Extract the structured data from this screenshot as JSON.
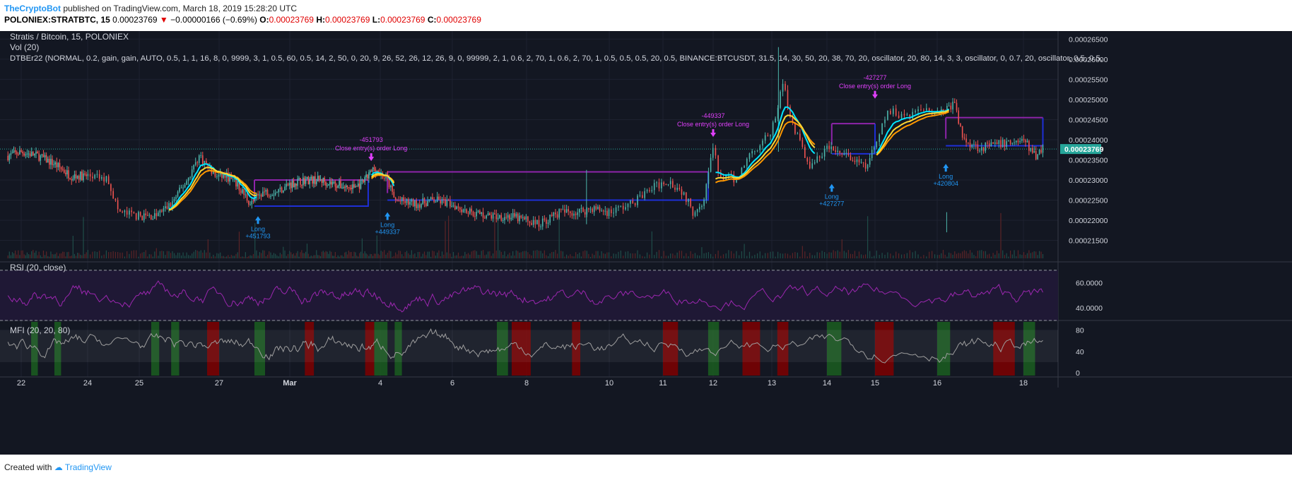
{
  "header": {
    "author": "TheCryptoBot",
    "published": "published on TradingView.com, March 18, 2019 15:28:20 UTC",
    "symbol": "POLONIEX:STRATBTC, 15",
    "last": "0.00023769",
    "arrow": "▼",
    "change": "−0.00000166 (−0.69%)",
    "o_label": "O:",
    "o": "0.00023769",
    "h_label": "H:",
    "h": "0.00023769",
    "l_label": "L:",
    "l": "0.00023769",
    "c_label": "C:",
    "c": "0.00023769"
  },
  "footer": {
    "created": "Created with",
    "brand": "TradingView"
  },
  "colors": {
    "background": "#131722",
    "rsi_band": "#1f1835",
    "rsi_line": "#9c27b0",
    "mfi_line": "#9e9e9e",
    "mfi_green": "#1b5e20",
    "mfi_red": "#7f0000",
    "position_blue": "#1e2fd6",
    "position_purple": "#8e24aa",
    "signal_label": "#e040fb",
    "long_label": "#2196f3",
    "price_tag": "#26a69a",
    "ma_yellow": "#fdd835",
    "ma_orange": "#ff9800",
    "ma_cyan": "#00e5ff"
  },
  "chart_data": {
    "type": "candlestick",
    "title": "Stratis / Bitcoin, 15, POLONIEX",
    "volume_label": "Vol (20)",
    "strategy_label": "DTBEr22 (NORMAL, 0.2,  gain,  gain, AUTO, 0.5, 1, 1, 16, 8, 0, 9999, 3, 1, 0.5, 60, 0.5, 14, 2, 50, 0, 20, 9, 26, 52, 26, 12, 26, 9, 0, 99999, 2, 1, 0.6, 2, 70, 1, 0.6, 2, 70, 1, 0.5, 0.5, 0.5, 20, 0.5, BINANCE:BTCUSDT, 31.5, 14, 30, 50, 20, 38, 70, 20, oscillator, 20, 80, 14, 3, 3, oscillator, 0, 0.7, 20, oscillator, 0.5, 0.5,",
    "x_axis": {
      "range_days": [
        21.6,
        40.5
      ],
      "ticks": [
        {
          "day": 22,
          "label": "22"
        },
        {
          "day": 24,
          "label": "24"
        },
        {
          "day": 25,
          "label": "25"
        },
        {
          "day": 27,
          "label": "27"
        },
        {
          "day": 29,
          "label": "Mar"
        },
        {
          "day": 32,
          "label": "4"
        },
        {
          "day": 34,
          "label": "6"
        },
        {
          "day": 36,
          "label": "8"
        },
        {
          "day": 38,
          "label": "10"
        },
        {
          "day": 39,
          "label": "11"
        },
        {
          "day": 40,
          "label": "12"
        },
        {
          "day": 41,
          "label": "13"
        },
        {
          "day": 42,
          "label": "14"
        },
        {
          "day": 43,
          "label": "15"
        },
        {
          "day": 44,
          "label": "16"
        },
        {
          "day": 46,
          "label": "18"
        }
      ]
    },
    "price_axis": {
      "ylim": [
        0.00021,
        0.000267
      ],
      "ticks": [
        "0.00021500",
        "0.00022000",
        "0.00022500",
        "0.00023000",
        "0.00023500",
        "0.00024000",
        "0.00024500",
        "0.00025000",
        "0.00025500",
        "0.00026000",
        "0.00026500"
      ],
      "last_price": "0.00023769"
    },
    "price_path": [
      {
        "day": 21.6,
        "p": 0.000236
      },
      {
        "day": 22.0,
        "p": 0.000237
      },
      {
        "day": 22.5,
        "p": 0.000236
      },
      {
        "day": 23.0,
        "p": 0.000234
      },
      {
        "day": 23.5,
        "p": 0.000231
      },
      {
        "day": 24.0,
        "p": 0.000231
      },
      {
        "day": 24.4,
        "p": 0.00023
      },
      {
        "day": 24.6,
        "p": 0.000222
      },
      {
        "day": 25.0,
        "p": 0.000221
      },
      {
        "day": 25.4,
        "p": 0.000221
      },
      {
        "day": 25.8,
        "p": 0.000224
      },
      {
        "day": 26.2,
        "p": 0.00023
      },
      {
        "day": 26.5,
        "p": 0.000236
      },
      {
        "day": 26.9,
        "p": 0.000231
      },
      {
        "day": 27.2,
        "p": 0.000231
      },
      {
        "day": 27.5,
        "p": 0.000229
      },
      {
        "day": 27.9,
        "p": 0.000224
      },
      {
        "day": 28.2,
        "p": 0.000227
      },
      {
        "day": 28.6,
        "p": 0.000227
      },
      {
        "day": 29.0,
        "p": 0.000229
      },
      {
        "day": 29.5,
        "p": 0.00023
      },
      {
        "day": 30.0,
        "p": 0.00023
      },
      {
        "day": 30.5,
        "p": 0.000229
      },
      {
        "day": 31.0,
        "p": 0.000228
      },
      {
        "day": 31.4,
        "p": 0.000229
      },
      {
        "day": 31.8,
        "p": 0.000233
      },
      {
        "day": 32.2,
        "p": 0.00023
      },
      {
        "day": 32.4,
        "p": 0.000225
      },
      {
        "day": 33.0,
        "p": 0.000224
      },
      {
        "day": 33.5,
        "p": 0.000225
      },
      {
        "day": 34.0,
        "p": 0.000224
      },
      {
        "day": 34.5,
        "p": 0.000222
      },
      {
        "day": 35.0,
        "p": 0.000221
      },
      {
        "day": 35.5,
        "p": 0.000221
      },
      {
        "day": 36.0,
        "p": 0.00022
      },
      {
        "day": 36.3,
        "p": 0.000219
      },
      {
        "day": 36.8,
        "p": 0.000222
      },
      {
        "day": 37.2,
        "p": 0.000222
      },
      {
        "day": 37.6,
        "p": 0.000223
      },
      {
        "day": 38.0,
        "p": 0.000222
      },
      {
        "day": 38.4,
        "p": 0.000224
      },
      {
        "day": 38.8,
        "p": 0.000228
      },
      {
        "day": 39.1,
        "p": 0.00023
      },
      {
        "day": 39.4,
        "p": 0.000227
      },
      {
        "day": 39.6,
        "p": 0.000222
      },
      {
        "day": 39.8,
        "p": 0.000225
      },
      {
        "day": 40.0,
        "p": 0.000238
      },
      {
        "day": 40.1,
        "p": 0.000231
      },
      {
        "day": 40.4,
        "p": 0.00023
      },
      {
        "day": 40.6,
        "p": 0.000236
      },
      {
        "day": 41.0,
        "p": 0.000242
      },
      {
        "day": 41.2,
        "p": 0.000254
      },
      {
        "day": 41.4,
        "p": 0.000243
      },
      {
        "day": 41.7,
        "p": 0.000233
      },
      {
        "day": 42.0,
        "p": 0.000238
      },
      {
        "day": 42.4,
        "p": 0.000236
      },
      {
        "day": 42.8,
        "p": 0.000233
      },
      {
        "day": 43.0,
        "p": 0.000238
      },
      {
        "day": 43.2,
        "p": 0.000247
      },
      {
        "day": 43.5,
        "p": 0.000246
      },
      {
        "day": 43.8,
        "p": 0.000248
      },
      {
        "day": 44.1,
        "p": 0.000247
      },
      {
        "day": 44.4,
        "p": 0.000249
      },
      {
        "day": 44.6,
        "p": 0.00024
      },
      {
        "day": 45.0,
        "p": 0.000238
      },
      {
        "day": 45.5,
        "p": 0.000239
      },
      {
        "day": 46.0,
        "p": 0.00024
      },
      {
        "day": 46.3,
        "p": 0.000236
      },
      {
        "day": 46.5,
        "p": 0.000238
      }
    ],
    "positions": {
      "long_levels": [
        {
          "from": 28.0,
          "to": 31.6,
          "p": 0.0002235
        },
        {
          "from": 32.2,
          "to": 39.9,
          "p": 0.000225
        },
        {
          "from": 42.1,
          "to": 43.0,
          "p": 0.0002365
        },
        {
          "from": 44.2,
          "to": 46.5,
          "p": 0.0002385
        }
      ],
      "close_levels": [
        {
          "from": 28.0,
          "to": 31.6,
          "p": 0.00023
        },
        {
          "from": 32.2,
          "to": 39.9,
          "p": 0.000232
        },
        {
          "from": 42.1,
          "to": 43.0,
          "p": 0.000244
        },
        {
          "from": 44.2,
          "to": 46.5,
          "p": 0.0002455
        }
      ]
    },
    "annotations": [
      {
        "type": "long",
        "day": 28.1,
        "p": 0.000221,
        "text": "Long",
        "value": "+451793"
      },
      {
        "type": "long",
        "day": 32.2,
        "p": 0.000222,
        "text": "Long",
        "value": "+449337"
      },
      {
        "type": "long",
        "day": 42.1,
        "p": 0.000229,
        "text": "Long",
        "value": "+427277"
      },
      {
        "type": "long",
        "day": 44.2,
        "p": 0.000234,
        "text": "Long",
        "value": "+420804"
      },
      {
        "type": "close",
        "day": 31.7,
        "p": 0.000234,
        "text": "Close entry(s) order Long",
        "value": "-451793"
      },
      {
        "type": "close",
        "day": 40.0,
        "p": 0.00024,
        "text": "Close entry(s) order Long",
        "value": "-449337"
      },
      {
        "type": "close",
        "day": 43.0,
        "p": 0.0002495,
        "text": "Close entry(s) order Long",
        "value": "-427277"
      }
    ],
    "rsi": {
      "label": "RSI (20, close)",
      "ylim": [
        30,
        75
      ],
      "upper": 70,
      "lower": 30,
      "band": [
        40,
        60
      ],
      "ticks": [
        "60.0000",
        "40.0000"
      ],
      "mean": 50
    },
    "mfi": {
      "label": "MFI (20, 20, 80)",
      "ylim": [
        -5,
        95
      ],
      "band": [
        20,
        80
      ],
      "ticks": [
        "80",
        "40",
        "0"
      ],
      "green_zones": [
        [
          25.3,
          25.5
        ],
        [
          25.8,
          26.0
        ],
        [
          28.0,
          28.3
        ],
        [
          31.8,
          32.2
        ],
        [
          32.4,
          32.6
        ],
        [
          35.2,
          35.5
        ],
        [
          39.9,
          40.1
        ],
        [
          42.0,
          42.3
        ],
        [
          44.0,
          44.3
        ],
        [
          46.0,
          46.3
        ],
        [
          22.3,
          22.5
        ],
        [
          23.0,
          23.2
        ]
      ],
      "red_zones": [
        [
          26.7,
          27.0
        ],
        [
          29.5,
          29.8
        ],
        [
          31.5,
          31.8
        ],
        [
          35.6,
          36.1
        ],
        [
          37.1,
          37.3
        ],
        [
          39.0,
          39.3
        ],
        [
          40.5,
          40.8
        ],
        [
          41.1,
          41.3
        ],
        [
          43.0,
          43.3
        ],
        [
          45.3,
          45.8
        ]
      ]
    }
  }
}
